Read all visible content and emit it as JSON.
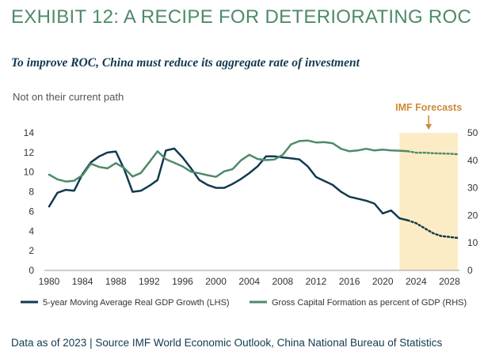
{
  "header": {
    "title": "EXHIBIT 12: A RECIPE FOR DETERIORATING ROC",
    "subtitle": "To improve ROC, China must reduce its aggregate rate of investment"
  },
  "footer": {
    "source": "Data as of 2023 | Source IMF World Economic Outlook, China National Bureau of Statistics"
  },
  "colors": {
    "gdp_series": "#123a4f",
    "investment_series": "#4e8a6a",
    "forecast_shade": "#fcecc5",
    "forecast_label": "#d08a3a",
    "title": "#4e8a6a"
  },
  "chart_data": {
    "type": "line",
    "title": "",
    "note": "Not on their current path",
    "forecast_label": "IMF Forecasts",
    "forecast_range": [
      2022,
      2029
    ],
    "xlim": [
      1980,
      2029
    ],
    "x_ticks": [
      "1980",
      "1984",
      "1988",
      "1992",
      "1996",
      "2000",
      "2004",
      "2008",
      "2012",
      "2016",
      "2020",
      "2024",
      "2028"
    ],
    "y_left": {
      "lim": [
        0,
        14
      ],
      "ticks": [
        "0",
        "2",
        "4",
        "6",
        "8",
        "10",
        "12",
        "14"
      ]
    },
    "y_right": {
      "lim": [
        0,
        50
      ],
      "ticks": [
        "0",
        "10",
        "20",
        "30",
        "40",
        "50"
      ]
    },
    "grid": false,
    "legend_position": "bottom",
    "series": [
      {
        "name": "5-year Moving Average Real GDP Growth (LHS)",
        "axis": "left",
        "color": "#123a4f",
        "actual": {
          "x": [
            1980,
            1981,
            1982,
            1983,
            1984,
            1985,
            1986,
            1987,
            1988,
            1989,
            1990,
            1991,
            1992,
            1993,
            1994,
            1995,
            1996,
            1997,
            1998,
            1999,
            2000,
            2001,
            2002,
            2003,
            2004,
            2005,
            2006,
            2007,
            2008,
            2009,
            2010,
            2011,
            2012,
            2013,
            2014,
            2015,
            2016,
            2017,
            2018,
            2019,
            2020,
            2021,
            2022,
            2023
          ],
          "y": [
            6.5,
            7.9,
            8.2,
            8.1,
            9.8,
            11.0,
            11.6,
            12.0,
            12.1,
            10.3,
            8.0,
            8.1,
            8.6,
            9.2,
            12.2,
            12.4,
            11.5,
            10.4,
            9.2,
            8.7,
            8.4,
            8.4,
            8.8,
            9.3,
            9.9,
            10.6,
            11.6,
            11.6,
            11.5,
            11.4,
            11.3,
            10.6,
            9.5,
            9.1,
            8.7,
            8.0,
            7.5,
            7.3,
            7.1,
            6.8,
            5.8,
            6.1,
            5.3,
            5.1
          ]
        },
        "forecast": {
          "x": [
            2023,
            2024,
            2025,
            2026,
            2027,
            2028,
            2029
          ],
          "y": [
            5.1,
            4.8,
            4.3,
            3.8,
            3.5,
            3.4,
            3.3
          ]
        }
      },
      {
        "name": "Gross Capital Formation as percent of GDP (RHS)",
        "axis": "right",
        "color": "#4e8a6a",
        "actual": {
          "x": [
            1980,
            1981,
            1982,
            1983,
            1984,
            1985,
            1986,
            1987,
            1988,
            1989,
            1990,
            1991,
            1992,
            1993,
            1994,
            1995,
            1996,
            1997,
            1998,
            1999,
            2000,
            2001,
            2002,
            2003,
            2004,
            2005,
            2006,
            2007,
            2008,
            2009,
            2010,
            2011,
            2012,
            2013,
            2014,
            2015,
            2016,
            2017,
            2018,
            2019,
            2020,
            2021,
            2022,
            2023
          ],
          "y": [
            34.8,
            33.1,
            32.3,
            32.6,
            34.6,
            38.8,
            37.6,
            37.1,
            39.0,
            37.2,
            34.1,
            35.4,
            39.3,
            43.3,
            40.4,
            39.1,
            37.8,
            35.9,
            35.3,
            34.6,
            34.0,
            36.0,
            36.8,
            40.0,
            42.0,
            40.5,
            40.1,
            40.3,
            42.0,
            45.8,
            47.0,
            47.2,
            46.5,
            46.6,
            46.2,
            44.2,
            43.3,
            43.6,
            44.2,
            43.6,
            43.9,
            43.6,
            43.5,
            43.3
          ]
        },
        "forecast": {
          "x": [
            2023,
            2024,
            2025,
            2026,
            2027,
            2028,
            2029
          ],
          "y": [
            43.3,
            42.8,
            42.8,
            42.6,
            42.5,
            42.4,
            42.2
          ]
        }
      }
    ]
  }
}
